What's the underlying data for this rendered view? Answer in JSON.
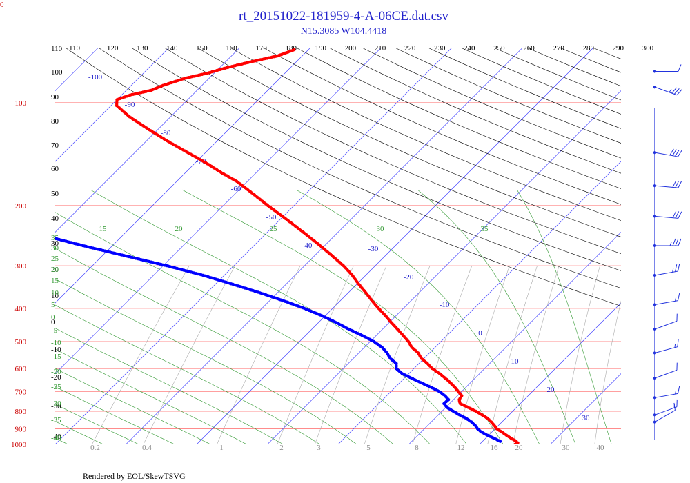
{
  "corner_label": "0",
  "footer": "Rendered by EOL/SkewTSVG",
  "chart_data": {
    "type": "skew-t",
    "title": "rt_20151022-181959-4-A-06CE.dat.csv",
    "subtitle": "N15.3085 W104.4418",
    "pressure_axis": {
      "type": "log",
      "range": [
        1000,
        69
      ],
      "ticks": [
        100,
        200,
        300,
        400,
        500,
        600,
        700,
        800,
        900,
        1000
      ]
    },
    "temperature_axis": {
      "range_at_1000hPa": [
        -40,
        40
      ],
      "skew_deg": 45
    },
    "isotherm_labels": [
      -100,
      -90,
      -80,
      -70,
      -60,
      -50,
      -40,
      -30,
      -20,
      -10,
      0,
      10,
      20,
      30
    ],
    "dry_adiabat_labels": [
      110,
      120,
      130,
      140,
      150,
      160,
      170,
      180,
      190,
      200,
      210,
      220,
      230,
      240,
      250,
      260,
      270,
      280,
      290,
      300
    ],
    "moist_adiabat_labels": [
      15,
      20,
      25,
      30,
      35
    ],
    "left_edge_moist_labels": [
      "35",
      "30",
      "25",
      "20",
      "15",
      "10",
      "5",
      "0",
      "-5",
      "-10",
      "-15",
      "-20",
      "-25",
      "-30",
      "-35",
      "-40"
    ],
    "left_edge_dry_labels": [
      "110",
      "100",
      "90",
      "80",
      "70",
      "60",
      "50",
      "40",
      "30",
      "20",
      "10",
      "0",
      "-10",
      "-20",
      "-30",
      "-40"
    ],
    "mixing_ratio_labels": [
      "0.2",
      "0.4",
      "1",
      "2",
      "3",
      "5",
      "8",
      "12",
      "16",
      "20",
      "30",
      "40"
    ],
    "temperature_profile": [
      {
        "p": 1000,
        "t": 25.0
      },
      {
        "p": 990,
        "t": 25.2
      },
      {
        "p": 975,
        "t": 24.5
      },
      {
        "p": 960,
        "t": 23.6
      },
      {
        "p": 940,
        "t": 22.5
      },
      {
        "p": 920,
        "t": 21.4
      },
      {
        "p": 900,
        "t": 20.2
      },
      {
        "p": 880,
        "t": 19.4
      },
      {
        "p": 860,
        "t": 18.5
      },
      {
        "p": 840,
        "t": 17.5
      },
      {
        "p": 820,
        "t": 16.2
      },
      {
        "p": 800,
        "t": 14.8
      },
      {
        "p": 780,
        "t": 13.2
      },
      {
        "p": 760,
        "t": 11.5
      },
      {
        "p": 740,
        "t": 10.8
      },
      {
        "p": 720,
        "t": 10.6
      },
      {
        "p": 700,
        "t": 9.5
      },
      {
        "p": 680,
        "t": 8.4
      },
      {
        "p": 650,
        "t": 6.5
      },
      {
        "p": 620,
        "t": 4.3
      },
      {
        "p": 600,
        "t": 2.6
      },
      {
        "p": 580,
        "t": 1.2
      },
      {
        "p": 560,
        "t": -0.4
      },
      {
        "p": 540,
        "t": -1.6
      },
      {
        "p": 520,
        "t": -3.3
      },
      {
        "p": 500,
        "t": -4.6
      },
      {
        "p": 480,
        "t": -6.2
      },
      {
        "p": 460,
        "t": -7.9
      },
      {
        "p": 440,
        "t": -9.7
      },
      {
        "p": 420,
        "t": -11.5
      },
      {
        "p": 400,
        "t": -13.5
      },
      {
        "p": 380,
        "t": -15.5
      },
      {
        "p": 360,
        "t": -17.5
      },
      {
        "p": 340,
        "t": -19.7
      },
      {
        "p": 320,
        "t": -21.9
      },
      {
        "p": 300,
        "t": -24.5
      },
      {
        "p": 280,
        "t": -27.6
      },
      {
        "p": 260,
        "t": -31.0
      },
      {
        "p": 240,
        "t": -34.8
      },
      {
        "p": 220,
        "t": -39.0
      },
      {
        "p": 200,
        "t": -43.7
      },
      {
        "p": 185,
        "t": -47.4
      },
      {
        "p": 170,
        "t": -51.5
      },
      {
        "p": 160,
        "t": -55.0
      },
      {
        "p": 150,
        "t": -58.5
      },
      {
        "p": 140,
        "t": -62.5
      },
      {
        "p": 130,
        "t": -66.8
      },
      {
        "p": 120,
        "t": -71.2
      },
      {
        "p": 110,
        "t": -75.8
      },
      {
        "p": 102,
        "t": -79.2
      },
      {
        "p": 98,
        "t": -80.0
      },
      {
        "p": 95,
        "t": -78.8
      },
      {
        "p": 92,
        "t": -76.5
      },
      {
        "p": 89,
        "t": -75.5
      },
      {
        "p": 85,
        "t": -73.5
      },
      {
        "p": 82,
        "t": -71.0
      },
      {
        "p": 79,
        "t": -69.0
      },
      {
        "p": 76,
        "t": -66.5
      },
      {
        "p": 73,
        "t": -63.5
      },
      {
        "p": 70,
        "t": -62.0
      }
    ],
    "dewpoint_profile": [
      {
        "p": 980,
        "t": 22.5
      },
      {
        "p": 960,
        "t": 21.2
      },
      {
        "p": 940,
        "t": 19.8
      },
      {
        "p": 920,
        "t": 18.5
      },
      {
        "p": 900,
        "t": 17.5
      },
      {
        "p": 880,
        "t": 16.7
      },
      {
        "p": 860,
        "t": 15.7
      },
      {
        "p": 840,
        "t": 14.5
      },
      {
        "p": 820,
        "t": 13.0
      },
      {
        "p": 800,
        "t": 11.6
      },
      {
        "p": 780,
        "t": 10.2
      },
      {
        "p": 760,
        "t": 9.2
      },
      {
        "p": 740,
        "t": 9.3
      },
      {
        "p": 720,
        "t": 8.2
      },
      {
        "p": 700,
        "t": 6.8
      },
      {
        "p": 680,
        "t": 5.0
      },
      {
        "p": 660,
        "t": 3.0
      },
      {
        "p": 640,
        "t": 1.0
      },
      {
        "p": 620,
        "t": -1.0
      },
      {
        "p": 600,
        "t": -2.5
      },
      {
        "p": 580,
        "t": -3.2
      },
      {
        "p": 560,
        "t": -4.8
      },
      {
        "p": 540,
        "t": -6.0
      },
      {
        "p": 520,
        "t": -7.5
      },
      {
        "p": 500,
        "t": -9.5
      },
      {
        "p": 480,
        "t": -12.0
      },
      {
        "p": 460,
        "t": -14.8
      },
      {
        "p": 440,
        "t": -17.5
      },
      {
        "p": 420,
        "t": -20.5
      },
      {
        "p": 400,
        "t": -24.0
      },
      {
        "p": 380,
        "t": -28.0
      },
      {
        "p": 360,
        "t": -32.5
      },
      {
        "p": 340,
        "t": -37.5
      },
      {
        "p": 320,
        "t": -43.0
      },
      {
        "p": 300,
        "t": -49.5
      },
      {
        "p": 280,
        "t": -57.0
      },
      {
        "p": 265,
        "t": -63.0
      },
      {
        "p": 250,
        "t": -69.0
      },
      {
        "p": 235,
        "t": -75.5
      },
      {
        "p": 220,
        "t": -82.0
      },
      {
        "p": 205,
        "t": -88.5
      },
      {
        "p": 195,
        "t": -93.0
      },
      {
        "p": 190,
        "t": -96.0
      }
    ],
    "wind_barbs": [
      {
        "p": 81,
        "dir": 90,
        "kt": 10
      },
      {
        "p": 90,
        "dir": 110,
        "kt": 35
      },
      {
        "p": 140,
        "dir": 100,
        "kt": 40
      },
      {
        "p": 175,
        "dir": 95,
        "kt": 30
      },
      {
        "p": 215,
        "dir": 95,
        "kt": 30
      },
      {
        "p": 262,
        "dir": 90,
        "kt": 35
      },
      {
        "p": 320,
        "dir": 80,
        "kt": 25
      },
      {
        "p": 390,
        "dir": 80,
        "kt": 15
      },
      {
        "p": 460,
        "dir": 70,
        "kt": 10
      },
      {
        "p": 540,
        "dir": 75,
        "kt": 15
      },
      {
        "p": 640,
        "dir": 70,
        "kt": 10
      },
      {
        "p": 730,
        "dir": 80,
        "kt": 15
      },
      {
        "p": 820,
        "dir": 70,
        "kt": 15
      },
      {
        "p": 860,
        "dir": 60,
        "kt": 10
      }
    ],
    "colors": {
      "temperature": "#ff0000",
      "dewpoint": "#0000ff",
      "isobar": "#ff6666",
      "isotherm": "#4444ff",
      "dry_adiabat": "#000000",
      "moist_adiabat": "#339933",
      "mixing_ratio": "#aaaaaa",
      "title": "#2222cc",
      "barb": "#2233dd"
    }
  }
}
